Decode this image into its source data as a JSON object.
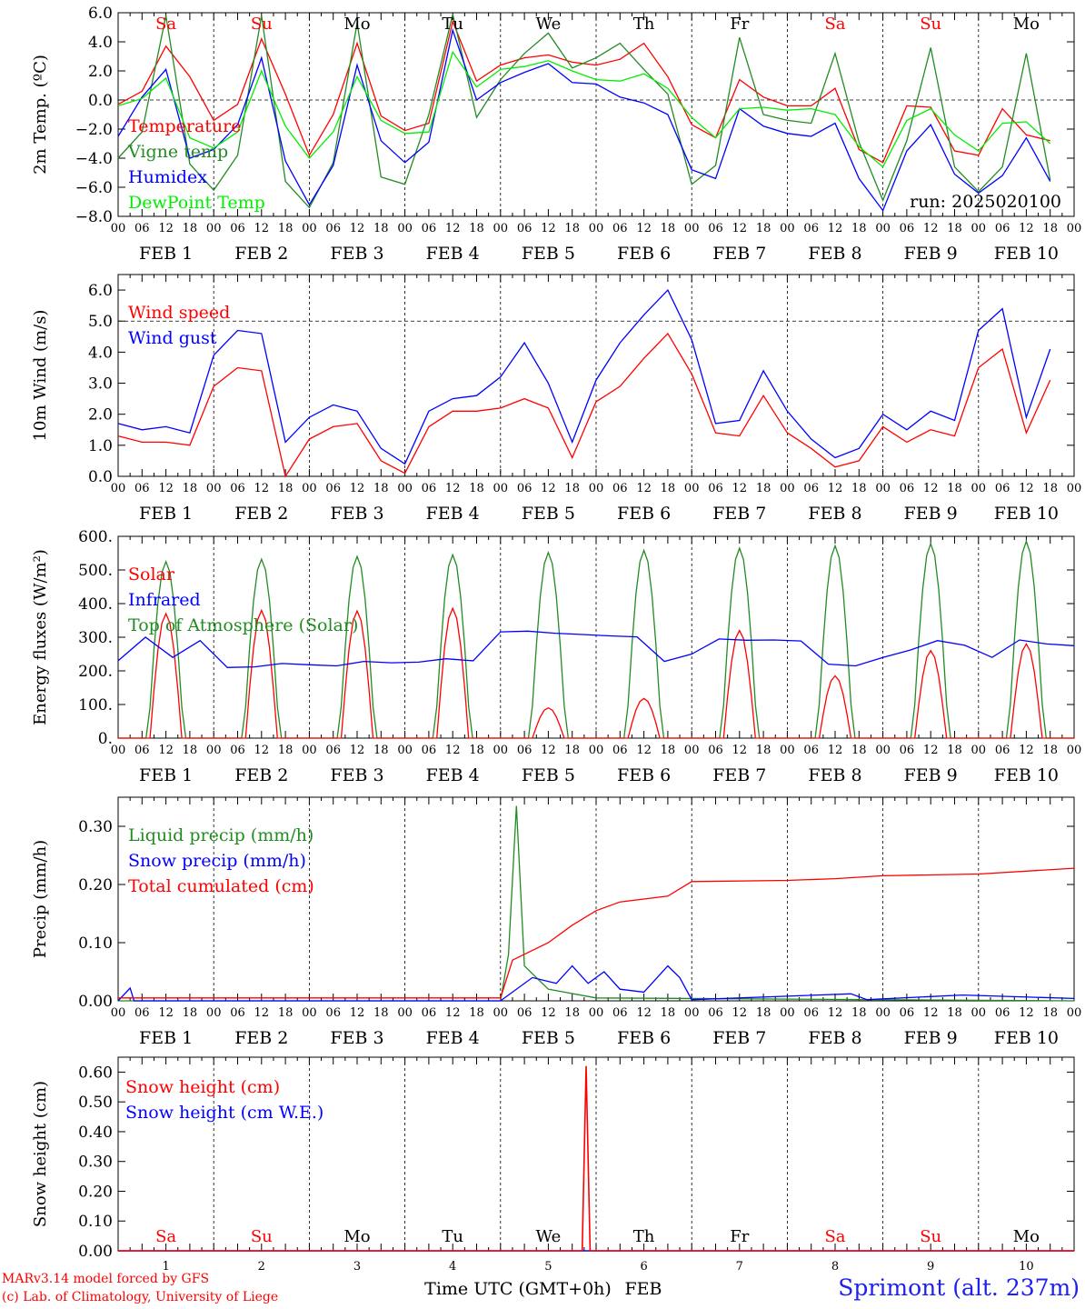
{
  "model": {
    "credit_line1": "MARv3.14 model forced by GFS",
    "credit_line2": "(c) Lab. of Climatology, University of Liege"
  },
  "location": "Sprimont (alt. 237m)",
  "run_label": "run: 2025020100",
  "xaxis": {
    "hour_ticks": [
      "00",
      "06",
      "12",
      "18"
    ],
    "dates": [
      "FEB  1",
      "FEB  2",
      "FEB  3",
      "FEB  4",
      "FEB  5",
      "FEB  6",
      "FEB  7",
      "FEB  8",
      "FEB  9",
      "FEB 10"
    ],
    "days": [
      "Sa",
      "Su",
      "Mo",
      "Tu",
      "We",
      "Th",
      "Fr",
      "Sa",
      "Su",
      "Mo"
    ],
    "day_colors": [
      "#ff0000",
      "#ff0000",
      "#000000",
      "#000000",
      "#000000",
      "#000000",
      "#000000",
      "#ff0000",
      "#ff0000",
      "#000000"
    ],
    "day_numbers": [
      "1",
      "2",
      "3",
      "4",
      "5",
      "6",
      "7",
      "8",
      "9",
      "10"
    ],
    "bottom_label": "Time UTC (GMT+0h)",
    "month": "FEB"
  },
  "chart_data": [
    {
      "type": "line",
      "ylabel": "2m Temp. (ºC)",
      "ylim": [
        -8,
        6
      ],
      "yticks": [
        "6.0",
        "4.0",
        "2.0",
        "0.0",
        "−2.0",
        "−4.0",
        "−6.0",
        "−8.0"
      ],
      "ytick_values": [
        6,
        4,
        2,
        0,
        -2,
        -4,
        -6,
        -8
      ],
      "x": "hours since FEB 1 00 UTC, step 6",
      "series": [
        {
          "name": "Temperature",
          "color": "#ff0000",
          "values": [
            -0.3,
            0.6,
            3.7,
            1.6,
            -1.4,
            -0.3,
            4.2,
            0.4,
            -3.8,
            -1.0,
            3.9,
            -1.1,
            -2.1,
            -1.6,
            5.4,
            1.3,
            2.4,
            2.9,
            3.1,
            2.6,
            2.4,
            2.8,
            3.9,
            1.6,
            -1.7,
            -2.6,
            1.4,
            0.2,
            -0.4,
            -0.4,
            0.8,
            -3.4,
            -4.3,
            -0.4,
            -0.5,
            -3.5,
            -3.8,
            -0.6,
            -2.4,
            -2.8
          ]
        },
        {
          "name": "Vigne temp",
          "color": "#228b22",
          "values": [
            -4.0,
            -2.2,
            5.8,
            -4.4,
            -6.2,
            -3.8,
            5.8,
            -5.6,
            -7.4,
            -4.3,
            5.3,
            -5.3,
            -5.8,
            -1.0,
            5.9,
            -1.2,
            1.4,
            3.2,
            4.6,
            2.2,
            2.9,
            3.9,
            2.1,
            0.4,
            -5.8,
            -4.5,
            4.3,
            -1.0,
            -1.4,
            -1.6,
            3.2,
            -2.9,
            -6.9,
            -2.8,
            3.6,
            -4.6,
            -6.3,
            -4.6,
            3.2,
            -5.5
          ]
        },
        {
          "name": "Humidex",
          "color": "#0000ff",
          "values": [
            -2.5,
            0.2,
            2.1,
            -4.0,
            -3.4,
            -1.7,
            2.9,
            -4.2,
            -7.2,
            -4.5,
            2.4,
            -2.8,
            -4.3,
            -2.9,
            4.8,
            0.0,
            1.2,
            1.9,
            2.5,
            1.2,
            1.1,
            0.2,
            -0.2,
            -1.0,
            -4.8,
            -5.4,
            -0.6,
            -1.8,
            -2.3,
            -2.5,
            -1.6,
            -5.4,
            -7.6,
            -3.5,
            -1.7,
            -5.1,
            -6.4,
            -5.2,
            -2.6,
            -5.6
          ]
        },
        {
          "name": "DewPoint Temp",
          "color": "#00ee00",
          "values": [
            -0.4,
            0.1,
            1.5,
            -2.6,
            -3.3,
            -2.2,
            2.0,
            -1.8,
            -4.0,
            -2.2,
            1.6,
            -1.4,
            -2.3,
            -2.2,
            3.3,
            0.9,
            2.1,
            2.3,
            2.7,
            2.0,
            1.4,
            1.3,
            1.8,
            0.8,
            -1.2,
            -2.6,
            -0.6,
            -0.5,
            -0.7,
            -0.6,
            -1.0,
            -3.2,
            -4.6,
            -1.4,
            -0.6,
            -2.4,
            -3.5,
            -1.6,
            -1.5,
            -3.0
          ]
        }
      ]
    },
    {
      "type": "line",
      "ylabel": "10m Wind (m/s)",
      "ylim": [
        0,
        6.5
      ],
      "yticks": [
        "0.0",
        "1.0",
        "2.0",
        "3.0",
        "4.0",
        "5.0",
        "6.0"
      ],
      "ytick_values": [
        0,
        1,
        2,
        3,
        4,
        5,
        6
      ],
      "dashed_reference": 5.0,
      "series": [
        {
          "name": "Wind speed",
          "color": "#ff0000",
          "values": [
            1.3,
            1.1,
            1.1,
            1.0,
            2.9,
            3.5,
            3.4,
            0.0,
            1.2,
            1.6,
            1.7,
            0.5,
            0.1,
            1.6,
            2.1,
            2.1,
            2.2,
            2.5,
            2.2,
            0.6,
            2.4,
            2.9,
            3.8,
            4.6,
            3.3,
            1.4,
            1.3,
            2.6,
            1.4,
            0.9,
            0.3,
            0.5,
            1.6,
            1.1,
            1.5,
            1.3,
            3.5,
            4.1,
            1.4,
            3.1
          ]
        },
        {
          "name": "Wind gust",
          "color": "#0000ff",
          "values": [
            1.7,
            1.5,
            1.6,
            1.4,
            3.9,
            4.7,
            4.6,
            1.1,
            1.9,
            2.3,
            2.1,
            0.9,
            0.4,
            2.1,
            2.5,
            2.6,
            3.2,
            4.3,
            3.0,
            1.1,
            3.1,
            4.3,
            5.2,
            6.0,
            4.4,
            1.7,
            1.8,
            3.4,
            2.1,
            1.2,
            0.6,
            0.9,
            2.0,
            1.5,
            2.1,
            1.8,
            4.7,
            5.4,
            1.9,
            4.1
          ]
        }
      ]
    },
    {
      "type": "line",
      "ylabel": "Energy fluxes (W/m²)",
      "ylim": [
        0,
        600
      ],
      "yticks": [
        "0.",
        "100.",
        "200.",
        "300.",
        "400.",
        "500.",
        "600."
      ],
      "ytick_values": [
        0,
        100,
        200,
        300,
        400,
        500,
        600
      ],
      "daily_peaks": {
        "Solar": [
          370,
          380,
          378,
          386,
          90,
          118,
          320,
          185,
          260,
          280
        ],
        "Top of Atmosphere (Solar)": [
          525,
          532,
          540,
          545,
          552,
          558,
          565,
          572,
          578,
          585
        ]
      },
      "series": [
        {
          "name": "Solar",
          "color": "#ff0000",
          "values_note": "diurnal, zero at night; peaks per day listed in daily_peaks"
        },
        {
          "name": "Infrared",
          "color": "#0000ff",
          "values": [
            230,
            300,
            240,
            290,
            210,
            212,
            222,
            218,
            215,
            228,
            224,
            226,
            236,
            230,
            316,
            318,
            312,
            308,
            304,
            301,
            228,
            250,
            295,
            291,
            292,
            289,
            220,
            215,
            240,
            262,
            290,
            276,
            240,
            292,
            280,
            275
          ]
        },
        {
          "name": "Top of Atmosphere (Solar)",
          "color": "#228b22",
          "values_note": "diurnal bell, peaks in daily_peaks"
        }
      ]
    },
    {
      "type": "line",
      "ylabel": "Precip (mm/h)",
      "ylim": [
        0,
        0.35
      ],
      "yticks": [
        "0.00",
        "0.10",
        "0.20",
        "0.30"
      ],
      "ytick_values": [
        0,
        0.1,
        0.2,
        0.3
      ],
      "series": [
        {
          "name": "Liquid precip (mm/h)",
          "color": "#228b22",
          "points": [
            [
              0,
              0
            ],
            [
              96,
              0
            ],
            [
              98,
              0.08
            ],
            [
              100,
              0.335
            ],
            [
              102,
              0.06
            ],
            [
              108,
              0.02
            ],
            [
              112,
              0.015
            ],
            [
              120,
              0.005
            ],
            [
              240,
              0
            ]
          ]
        },
        {
          "name": "Snow precip (mm/h)",
          "color": "#0000ff",
          "points": [
            [
              0,
              0
            ],
            [
              3,
              0.022
            ],
            [
              4,
              0
            ],
            [
              96,
              0
            ],
            [
              104,
              0.04
            ],
            [
              110,
              0.03
            ],
            [
              114,
              0.06
            ],
            [
              118,
              0.03
            ],
            [
              122,
              0.05
            ],
            [
              126,
              0.02
            ],
            [
              132,
              0.015
            ],
            [
              138,
              0.06
            ],
            [
              141,
              0.04
            ],
            [
              144,
              0.002
            ],
            [
              184,
              0.012
            ],
            [
              188,
              0.002
            ],
            [
              212,
              0.01
            ],
            [
              240,
              0.004
            ]
          ]
        },
        {
          "name": "Total cumulated (cm)",
          "color": "#ff0000",
          "points": [
            [
              0,
              0.005
            ],
            [
              96,
              0.005
            ],
            [
              99,
              0.07
            ],
            [
              108,
              0.1
            ],
            [
              114,
              0.13
            ],
            [
              120,
              0.155
            ],
            [
              126,
              0.17
            ],
            [
              138,
              0.18
            ],
            [
              144,
              0.205
            ],
            [
              168,
              0.207
            ],
            [
              180,
              0.21
            ],
            [
              192,
              0.215
            ],
            [
              216,
              0.218
            ],
            [
              240,
              0.228
            ]
          ]
        }
      ]
    },
    {
      "type": "line",
      "ylabel": "Snow height (cm)",
      "ylim": [
        0,
        0.65
      ],
      "yticks": [
        "0.00",
        "0.10",
        "0.20",
        "0.30",
        "0.40",
        "0.50",
        "0.60"
      ],
      "ytick_values": [
        0,
        0.1,
        0.2,
        0.3,
        0.4,
        0.5,
        0.6
      ],
      "series": [
        {
          "name": "Snow height (cm)",
          "color": "#ff0000",
          "points": [
            [
              0,
              0
            ],
            [
              116.5,
              0
            ],
            [
              117.5,
              0.62
            ],
            [
              118.5,
              0
            ],
            [
              240,
              0
            ]
          ]
        },
        {
          "name": "Snow height (cm W.E.)",
          "color": "#0000ff",
          "points": [
            [
              0,
              0
            ],
            [
              240,
              0
            ]
          ]
        }
      ]
    }
  ]
}
